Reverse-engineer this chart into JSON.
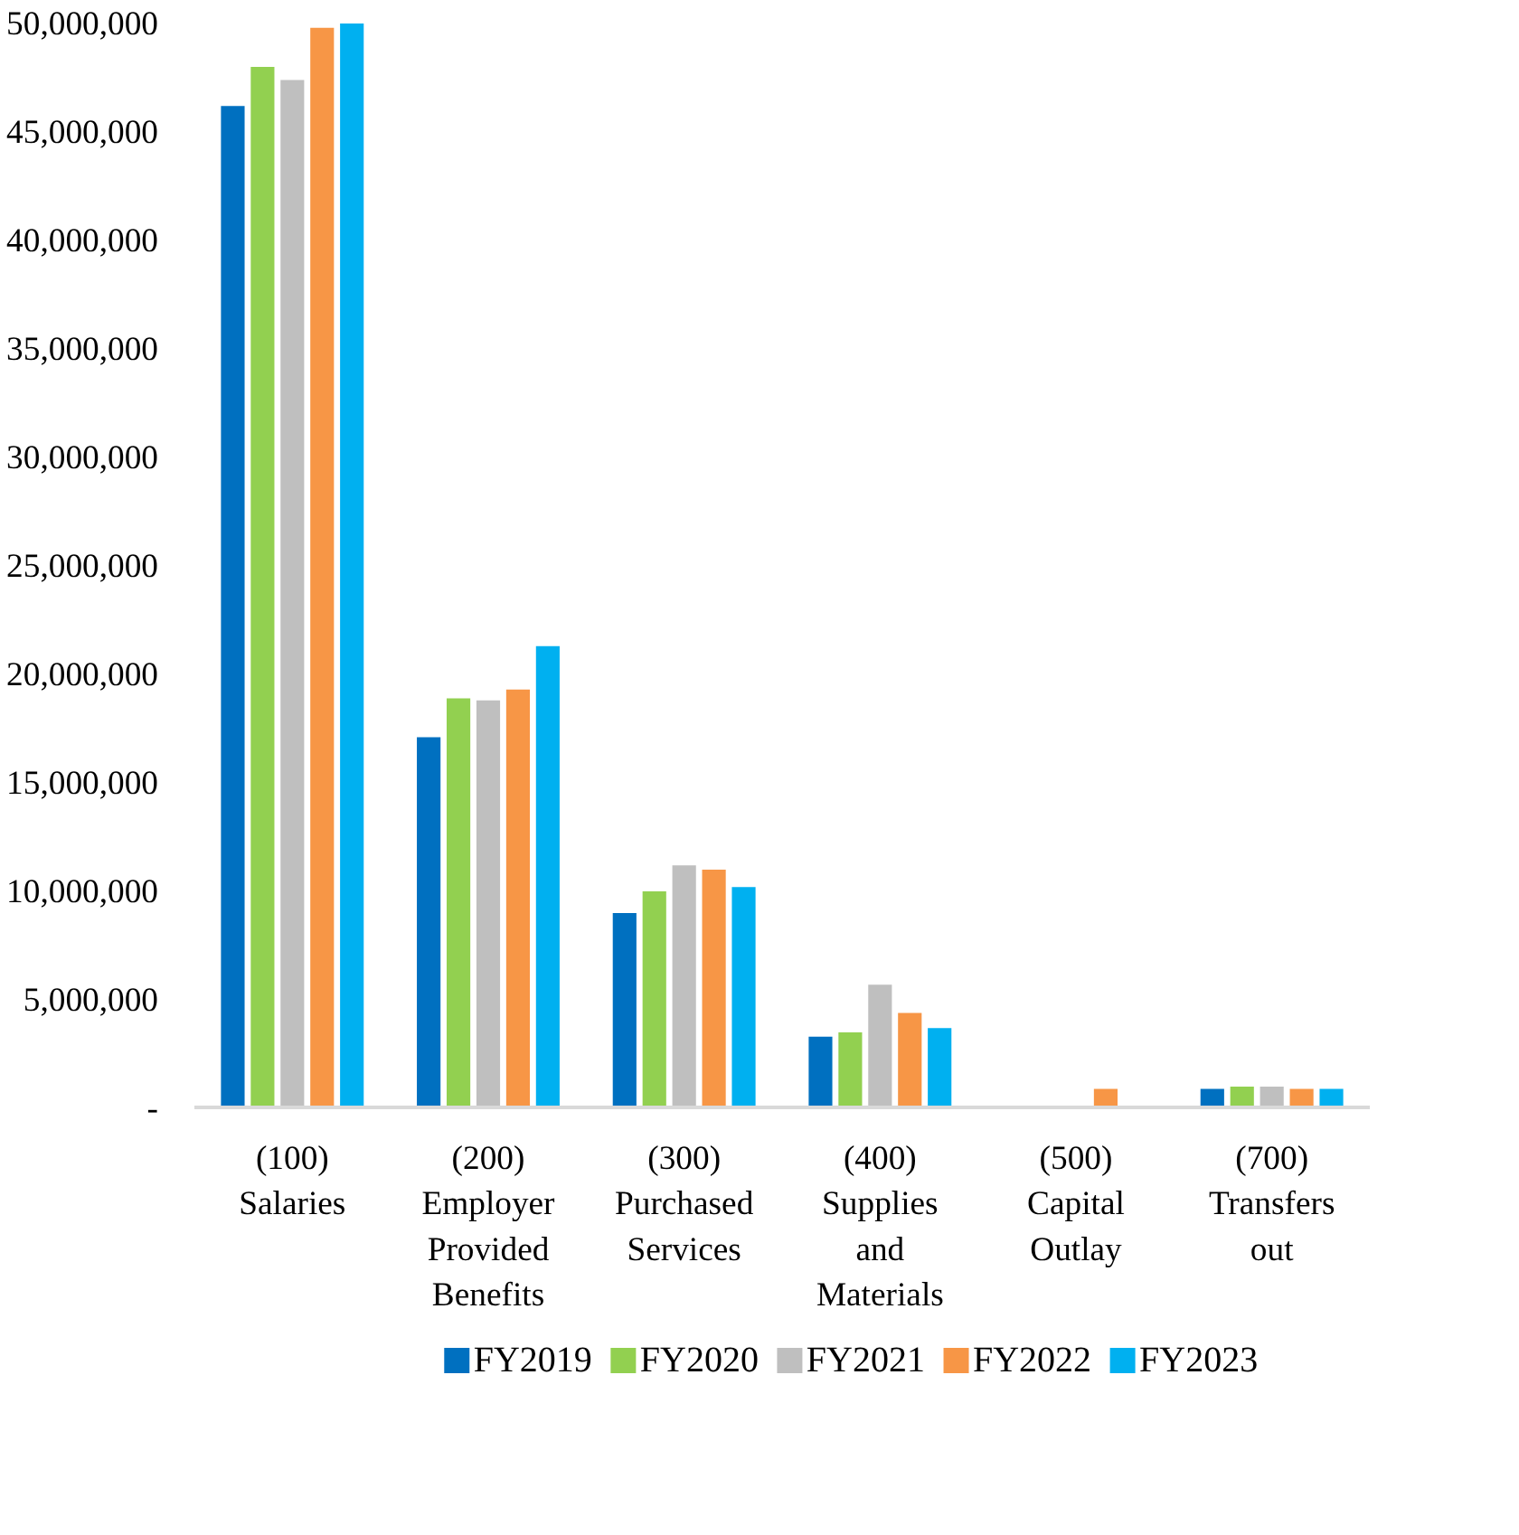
{
  "chart_data": {
    "type": "bar",
    "categories": [
      "(100) Salaries",
      "(200) Employer Provided Benefits",
      "(300) Purchased Services",
      "(400) Supplies and Materials",
      "(500) Capital Outlay",
      "(700) Transfers out"
    ],
    "series": [
      {
        "name": "FY2019",
        "color": "#0070c0",
        "values": [
          46200000,
          17100000,
          9000000,
          3300000,
          null,
          900000
        ]
      },
      {
        "name": "FY2020",
        "color": "#92d050",
        "values": [
          48000000,
          18900000,
          10000000,
          3500000,
          null,
          1000000
        ]
      },
      {
        "name": "FY2021",
        "color": "#bfbfbf",
        "values": [
          47400000,
          18800000,
          11200000,
          5700000,
          null,
          1000000
        ]
      },
      {
        "name": "FY2022",
        "color": "#f79646",
        "values": [
          49800000,
          19300000,
          11000000,
          4400000,
          900000,
          900000
        ]
      },
      {
        "name": "FY2023",
        "color": "#00b0f0",
        "values": [
          50000000,
          21300000,
          10200000,
          3700000,
          null,
          900000
        ]
      }
    ],
    "ylim": [
      0,
      50000000
    ],
    "yticks": [
      {
        "value": 0,
        "label": "-"
      },
      {
        "value": 5000000,
        "label": "5,000,000"
      },
      {
        "value": 10000000,
        "label": "10,000,000"
      },
      {
        "value": 15000000,
        "label": "15,000,000"
      },
      {
        "value": 20000000,
        "label": "20,000,000"
      },
      {
        "value": 25000000,
        "label": "25,000,000"
      },
      {
        "value": 30000000,
        "label": "30,000,000"
      },
      {
        "value": 35000000,
        "label": "35,000,000"
      },
      {
        "value": 40000000,
        "label": "40,000,000"
      },
      {
        "value": 45000000,
        "label": "45,000,000"
      },
      {
        "value": 50000000,
        "label": "50,000,000"
      }
    ],
    "grid": false,
    "legend": "bottom"
  }
}
